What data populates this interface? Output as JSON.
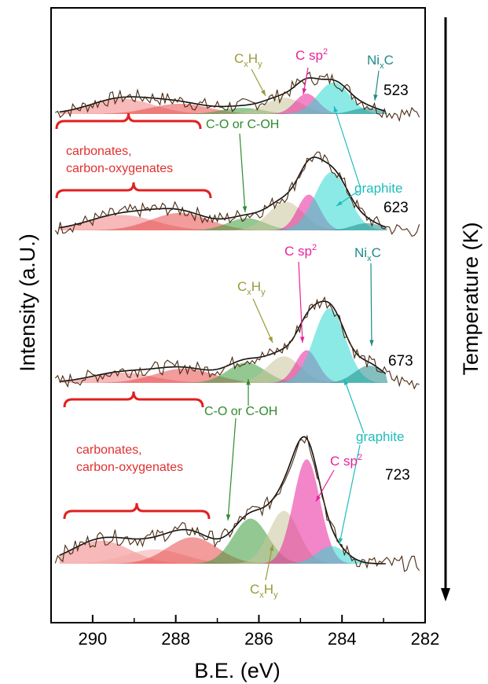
{
  "chart_data": {
    "type": "line",
    "title": "",
    "xlabel": "B.E. (eV)",
    "ylabel": "Intensity (a.U.)",
    "right_label": "Temperature (K)",
    "x_reversed": true,
    "xlim": [
      291,
      282
    ],
    "x_ticks": [
      "290",
      "288",
      "286",
      "284",
      "282"
    ],
    "grid": false,
    "legend": "none",
    "spectra": [
      {
        "temperature": "523",
        "components": [
          {
            "name": "carbonates",
            "center": 289.3,
            "height": 0.15,
            "width": 0.75,
            "color": "#f08080"
          },
          {
            "name": "carbon-oxygenates",
            "center": 287.9,
            "height": 0.1,
            "width": 0.7,
            "color": "#e84a4a"
          },
          {
            "name": "C-O or C-OH",
            "center": 286.4,
            "height": 0.06,
            "width": 0.5,
            "color": "#3a9a3a"
          },
          {
            "name": "CxHy",
            "center": 285.4,
            "height": 0.16,
            "width": 0.45,
            "color": "#c9c49a"
          },
          {
            "name": "C sp2",
            "center": 284.85,
            "height": 0.2,
            "width": 0.28,
            "color": "#e8229a"
          },
          {
            "name": "graphite",
            "center": 284.2,
            "height": 0.31,
            "width": 0.38,
            "color": "#2cd8d0"
          },
          {
            "name": "NixC",
            "center": 283.4,
            "height": 0.06,
            "width": 0.35,
            "color": "#1f8a8a"
          }
        ]
      },
      {
        "temperature": "623",
        "components": [
          {
            "name": "carbonates",
            "center": 289.3,
            "height": 0.15,
            "width": 0.8,
            "color": "#f08080"
          },
          {
            "name": "carbon-oxygenates",
            "center": 287.9,
            "height": 0.17,
            "width": 0.7,
            "color": "#e84a4a"
          },
          {
            "name": "C-O or C-OH",
            "center": 286.3,
            "height": 0.12,
            "width": 0.45,
            "color": "#3a9a3a"
          },
          {
            "name": "CxHy",
            "center": 285.35,
            "height": 0.28,
            "width": 0.42,
            "color": "#c9c49a"
          },
          {
            "name": "C sp2",
            "center": 284.8,
            "height": 0.35,
            "width": 0.27,
            "color": "#e8229a"
          },
          {
            "name": "graphite",
            "center": 284.25,
            "height": 0.57,
            "width": 0.4,
            "color": "#2cd8d0"
          },
          {
            "name": "NixC",
            "center": 283.4,
            "height": 0.07,
            "width": 0.35,
            "color": "#1f8a8a"
          }
        ]
      },
      {
        "temperature": "673",
        "components": [
          {
            "name": "carbonates",
            "center": 289.3,
            "height": 0.1,
            "width": 0.75,
            "color": "#f08080"
          },
          {
            "name": "carbon-oxygenates",
            "center": 287.8,
            "height": 0.14,
            "width": 0.7,
            "color": "#e84a4a"
          },
          {
            "name": "C-O or C-OH",
            "center": 286.3,
            "height": 0.2,
            "width": 0.45,
            "color": "#3a9a3a"
          },
          {
            "name": "CxHy",
            "center": 285.4,
            "height": 0.26,
            "width": 0.4,
            "color": "#c9c49a"
          },
          {
            "name": "C sp2",
            "center": 284.85,
            "height": 0.32,
            "width": 0.27,
            "color": "#e8229a"
          },
          {
            "name": "graphite",
            "center": 284.3,
            "height": 0.73,
            "width": 0.38,
            "color": "#2cd8d0"
          },
          {
            "name": "NixC",
            "center": 283.35,
            "height": 0.17,
            "width": 0.35,
            "color": "#1f8a8a"
          }
        ]
      },
      {
        "temperature": "723",
        "components": [
          {
            "name": "carbonates",
            "center": 289.8,
            "height": 0.21,
            "width": 0.7,
            "color": "#f08080"
          },
          {
            "name": "carbonates-2",
            "center": 288.5,
            "height": 0.13,
            "width": 0.7,
            "color": "#f4a8a8"
          },
          {
            "name": "carbon-oxygenates",
            "center": 287.6,
            "height": 0.24,
            "width": 0.6,
            "color": "#e84a4a"
          },
          {
            "name": "C-O or C-OH",
            "center": 286.2,
            "height": 0.41,
            "width": 0.42,
            "color": "#3a9a3a"
          },
          {
            "name": "CxHy",
            "center": 285.4,
            "height": 0.48,
            "width": 0.36,
            "color": "#c9c49a"
          },
          {
            "name": "C sp2",
            "center": 284.85,
            "height": 0.95,
            "width": 0.32,
            "color": "#e8229a"
          },
          {
            "name": "graphite",
            "center": 284.25,
            "height": 0.16,
            "width": 0.35,
            "color": "#2cd8d0"
          }
        ]
      }
    ],
    "annotations": [
      {
        "id": "cxhy-523",
        "base": "C",
        "sub1": "x",
        "mid": "H",
        "sub2": "y",
        "color": "#9a9a3a"
      },
      {
        "id": "csp2-523",
        "base": "C sp",
        "sup": "2",
        "color": "#e8229a"
      },
      {
        "id": "nixc-523",
        "base": "Ni",
        "sub1": "x",
        "mid": "C",
        "color": "#1f8a8a"
      },
      {
        "id": "co-623",
        "text": "C-O or C-OH",
        "color": "#2e8b2e"
      },
      {
        "id": "carb-top-1",
        "text": "carbonates,",
        "color": "#e03030"
      },
      {
        "id": "carb-top-2",
        "text": "carbon-oxygenates",
        "color": "#e03030"
      },
      {
        "id": "graphite-623",
        "text": "graphite",
        "color": "#1fbcbc"
      },
      {
        "id": "csp2-673",
        "base": "C sp",
        "sup": "2",
        "color": "#e8229a"
      },
      {
        "id": "nixc-673",
        "base": "Ni",
        "sub1": "x",
        "mid": "C",
        "color": "#1f8a8a"
      },
      {
        "id": "cxhy-673",
        "base": "C",
        "sub1": "x",
        "mid": "H",
        "sub2": "y",
        "color": "#9a9a3a"
      },
      {
        "id": "co-673",
        "text": "C-O or C-OH",
        "color": "#2e8b2e"
      },
      {
        "id": "graphite-723",
        "text": "graphite",
        "color": "#1fbcbc"
      },
      {
        "id": "carb-bot-1",
        "text": "carbonates,",
        "color": "#e03030"
      },
      {
        "id": "carb-bot-2",
        "text": "carbon-oxygenates",
        "color": "#e03030"
      },
      {
        "id": "csp2-723",
        "base": "C sp",
        "sup": "2",
        "color": "#e8229a"
      },
      {
        "id": "cxhy-723",
        "base": "C",
        "sub1": "x",
        "mid": "H",
        "sub2": "y",
        "color": "#9a9a3a"
      }
    ]
  }
}
